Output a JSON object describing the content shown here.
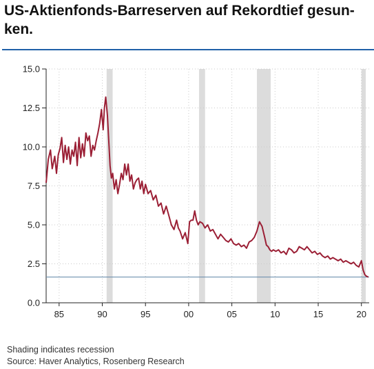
{
  "header": {
    "title": "US-Aktienfonds-Barreserven auf Rekordtief gesun­ken."
  },
  "footnotes": {
    "shading": "Shading indicates recession",
    "source": "Source: Haver Analytics, Rosenberg Research"
  },
  "colors": {
    "series": "#9b1f35",
    "recession": "#dcdcdc",
    "reference_line": "#6d8fae",
    "title_rule": "#1f5fa8"
  },
  "chart_data": {
    "type": "line",
    "title": "",
    "xlabel": "",
    "ylabel": "",
    "xlim": [
      1983.5,
      2020.9
    ],
    "ylim": [
      0,
      15
    ],
    "grid": true,
    "y_ticks": [
      "0.0",
      "2.5",
      "5.0",
      "7.5",
      "10.0",
      "12.5",
      "15.0"
    ],
    "x_ticks": [
      {
        "year": 1985,
        "label": "85"
      },
      {
        "year": 1990,
        "label": "90"
      },
      {
        "year": 1995,
        "label": "95"
      },
      {
        "year": 2000,
        "label": "00"
      },
      {
        "year": 2005,
        "label": "05"
      },
      {
        "year": 2010,
        "label": "10"
      },
      {
        "year": 2015,
        "label": "15"
      },
      {
        "year": 2020,
        "label": "20"
      }
    ],
    "recessions": [
      [
        1990.5,
        1991.2
      ],
      [
        2001.2,
        2001.9
      ],
      [
        2007.9,
        2009.5
      ],
      [
        2020.0,
        2020.5
      ]
    ],
    "reference_value": 1.65,
    "series": [
      {
        "x": [
          1983.5,
          1983.75,
          1984.0,
          1984.2,
          1984.5,
          1984.7,
          1984.9,
          1985.1,
          1985.3,
          1985.5,
          1985.7,
          1985.9,
          1986.1,
          1986.3,
          1986.5,
          1986.7,
          1986.9,
          1987.1,
          1987.3,
          1987.5,
          1987.7,
          1987.9,
          1988.1,
          1988.3,
          1988.5,
          1988.7,
          1988.9,
          1989.1,
          1989.3,
          1989.5,
          1989.7,
          1989.9,
          1990.1,
          1990.25,
          1990.4,
          1990.6,
          1990.75,
          1990.9,
          1991.05,
          1991.2,
          1991.4,
          1991.6,
          1991.8,
          1992.0,
          1992.2,
          1992.4,
          1992.6,
          1992.8,
          1993.0,
          1993.2,
          1993.4,
          1993.6,
          1993.8,
          1994.0,
          1994.2,
          1994.4,
          1994.6,
          1994.8,
          1995.0,
          1995.3,
          1995.6,
          1995.9,
          1996.2,
          1996.5,
          1996.8,
          1997.1,
          1997.4,
          1997.7,
          1998.0,
          1998.3,
          1998.6,
          1998.8,
          1999.0,
          1999.3,
          1999.6,
          1999.9,
          2000.1,
          2000.3,
          2000.5,
          2000.7,
          2000.9,
          2001.1,
          2001.3,
          2001.6,
          2001.9,
          2002.2,
          2002.5,
          2002.8,
          2003.1,
          2003.4,
          2003.7,
          2004.0,
          2004.3,
          2004.6,
          2004.9,
          2005.2,
          2005.5,
          2005.8,
          2006.1,
          2006.4,
          2006.7,
          2007.0,
          2007.3,
          2007.6,
          2007.9,
          2008.2,
          2008.5,
          2008.8,
          2009.0,
          2009.2,
          2009.4,
          2009.6,
          2009.8,
          2010.1,
          2010.4,
          2010.7,
          2011.0,
          2011.3,
          2011.6,
          2011.9,
          2012.2,
          2012.5,
          2012.8,
          2013.1,
          2013.4,
          2013.7,
          2014.0,
          2014.3,
          2014.6,
          2014.9,
          2015.2,
          2015.5,
          2015.8,
          2016.1,
          2016.4,
          2016.7,
          2017.0,
          2017.3,
          2017.6,
          2017.9,
          2018.2,
          2018.5,
          2018.8,
          2019.1,
          2019.4,
          2019.7,
          2020.0,
          2020.2,
          2020.4,
          2020.6,
          2020.8
        ],
        "values": [
          7.7,
          9.2,
          9.8,
          8.6,
          9.4,
          8.3,
          9.5,
          9.9,
          10.6,
          9.0,
          10.1,
          9.2,
          10.0,
          8.9,
          9.8,
          9.4,
          10.3,
          8.8,
          10.6,
          9.3,
          10.2,
          9.4,
          10.9,
          10.4,
          10.7,
          9.4,
          10.1,
          9.8,
          10.4,
          10.9,
          11.5,
          12.4,
          11.1,
          12.5,
          13.2,
          12.0,
          10.4,
          8.8,
          8.0,
          8.3,
          7.3,
          7.9,
          7.0,
          7.6,
          8.3,
          7.9,
          8.9,
          8.2,
          8.9,
          7.8,
          8.2,
          7.3,
          7.7,
          7.9,
          8.0,
          7.3,
          7.8,
          7.0,
          7.6,
          7.0,
          7.2,
          6.6,
          6.9,
          6.2,
          6.4,
          5.7,
          6.2,
          5.6,
          5.0,
          4.7,
          5.3,
          4.8,
          4.6,
          4.1,
          4.5,
          3.8,
          5.2,
          5.3,
          5.3,
          5.9,
          5.3,
          5.0,
          5.2,
          5.1,
          4.8,
          5.0,
          4.6,
          4.7,
          4.4,
          4.1,
          4.4,
          4.2,
          4.0,
          3.9,
          4.1,
          3.8,
          3.7,
          3.8,
          3.6,
          3.7,
          3.5,
          3.9,
          4.0,
          4.2,
          4.6,
          5.2,
          4.9,
          4.2,
          3.7,
          3.6,
          3.4,
          3.3,
          3.4,
          3.3,
          3.4,
          3.2,
          3.3,
          3.1,
          3.5,
          3.4,
          3.2,
          3.3,
          3.6,
          3.5,
          3.4,
          3.6,
          3.4,
          3.2,
          3.3,
          3.1,
          3.2,
          3.0,
          2.9,
          3.0,
          2.8,
          2.9,
          2.8,
          2.7,
          2.8,
          2.6,
          2.7,
          2.6,
          2.5,
          2.6,
          2.4,
          2.3,
          2.7,
          2.1,
          1.8,
          1.7,
          1.65
        ]
      }
    ]
  }
}
